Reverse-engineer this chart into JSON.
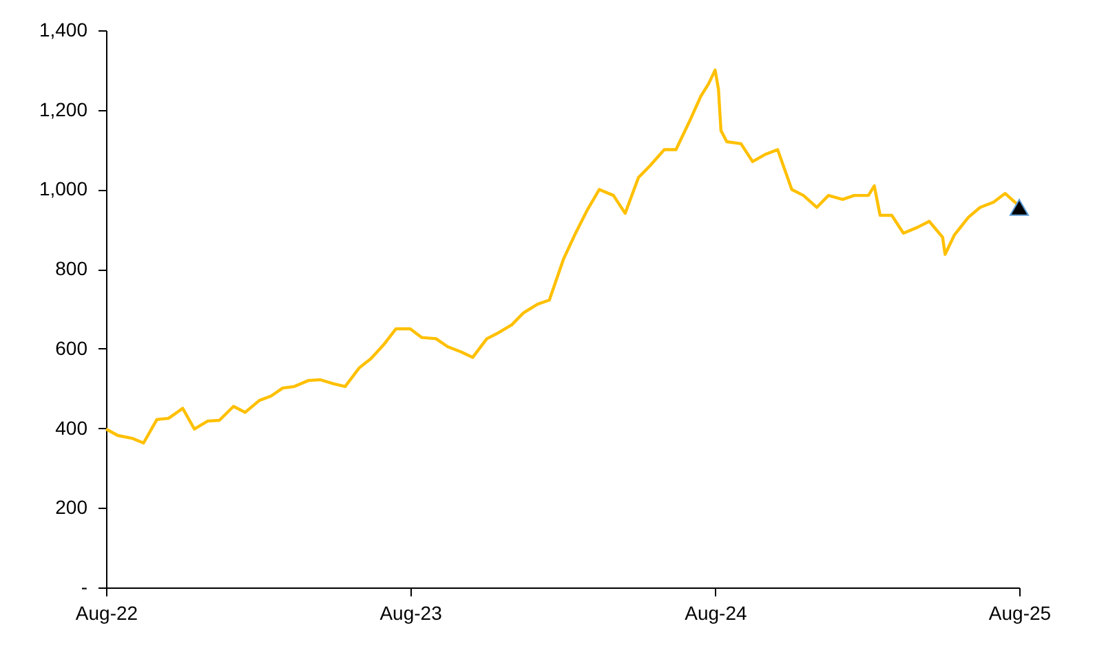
{
  "chart_data": {
    "type": "line",
    "series": [
      {
        "color": "#ffc000",
        "x": [
          "2022-08-01",
          "2022-08-15",
          "2022-09-01",
          "2022-09-15",
          "2022-10-01",
          "2022-10-15",
          "2022-11-01",
          "2022-11-15",
          "2022-12-01",
          "2022-12-15",
          "2023-01-01",
          "2023-01-15",
          "2023-02-01",
          "2023-02-15",
          "2023-03-01",
          "2023-03-15",
          "2023-04-01",
          "2023-04-15",
          "2023-05-01",
          "2023-05-15",
          "2023-06-01",
          "2023-06-15",
          "2023-07-01",
          "2023-07-15",
          "2023-08-01",
          "2023-08-15",
          "2023-09-01",
          "2023-09-15",
          "2023-10-01",
          "2023-10-15",
          "2023-11-01",
          "2023-11-15",
          "2023-12-01",
          "2023-12-15",
          "2024-01-01",
          "2024-01-15",
          "2024-02-01",
          "2024-02-15",
          "2024-03-01",
          "2024-03-15",
          "2024-04-01",
          "2024-04-15",
          "2024-05-01",
          "2024-05-15",
          "2024-06-01",
          "2024-06-15",
          "2024-07-01",
          "2024-07-15",
          "2024-07-24",
          "2024-08-01",
          "2024-08-05",
          "2024-08-08",
          "2024-08-15",
          "2024-09-01",
          "2024-09-15",
          "2024-10-01",
          "2024-10-15",
          "2024-11-01",
          "2024-11-15",
          "2024-12-01",
          "2024-12-15",
          "2025-01-01",
          "2025-01-15",
          "2025-02-01",
          "2025-02-08",
          "2025-02-15",
          "2025-03-01",
          "2025-03-15",
          "2025-04-01",
          "2025-04-15",
          "2025-05-01",
          "2025-05-04",
          "2025-05-15",
          "2025-06-01",
          "2025-06-15",
          "2025-07-01",
          "2025-07-15",
          "2025-08-01"
        ],
        "values": [
          398,
          382,
          375,
          363,
          422,
          425,
          450,
          398,
          418,
          420,
          455,
          440,
          470,
          481,
          501,
          505,
          520,
          522,
          512,
          505,
          552,
          575,
          612,
          650,
          650,
          628,
          625,
          605,
          592,
          578,
          625,
          640,
          660,
          690,
          712,
          722,
          825,
          888,
          950,
          1000,
          985,
          940,
          1030,
          1060,
          1100,
          1100,
          1170,
          1235,
          1265,
          1300,
          1252,
          1148,
          1120,
          1115,
          1070,
          1089,
          1100,
          1000,
          985,
          955,
          985,
          975,
          985,
          985,
          1009,
          935,
          935,
          890,
          905,
          920,
          880,
          837,
          885,
          930,
          955,
          968,
          990,
          958
        ]
      },
      {
        "type": "scatter",
        "marker": "triangle",
        "color": "#000000",
        "x": [
          "2025-08-01"
        ],
        "values": [
          955
        ]
      }
    ],
    "xlim": [
      "2022-08-01",
      "2025-08-01"
    ],
    "xticks": [
      {
        "value": "2022-08-01",
        "label": "Aug-22"
      },
      {
        "value": "2023-08-01",
        "label": "Aug-23"
      },
      {
        "value": "2024-08-01",
        "label": "Aug-24"
      },
      {
        "value": "2025-08-01",
        "label": "Aug-25"
      }
    ],
    "ylim": [
      0,
      1400
    ],
    "yticks": [
      {
        "value": 0,
        "label": "-"
      },
      {
        "value": 200,
        "label": "200"
      },
      {
        "value": 400,
        "label": "400"
      },
      {
        "value": 600,
        "label": "600"
      },
      {
        "value": 800,
        "label": "800"
      },
      {
        "value": 1000,
        "label": "1,000"
      },
      {
        "value": 1200,
        "label": "1,200"
      },
      {
        "value": 1400,
        "label": "1,400"
      }
    ],
    "grid": false
  }
}
